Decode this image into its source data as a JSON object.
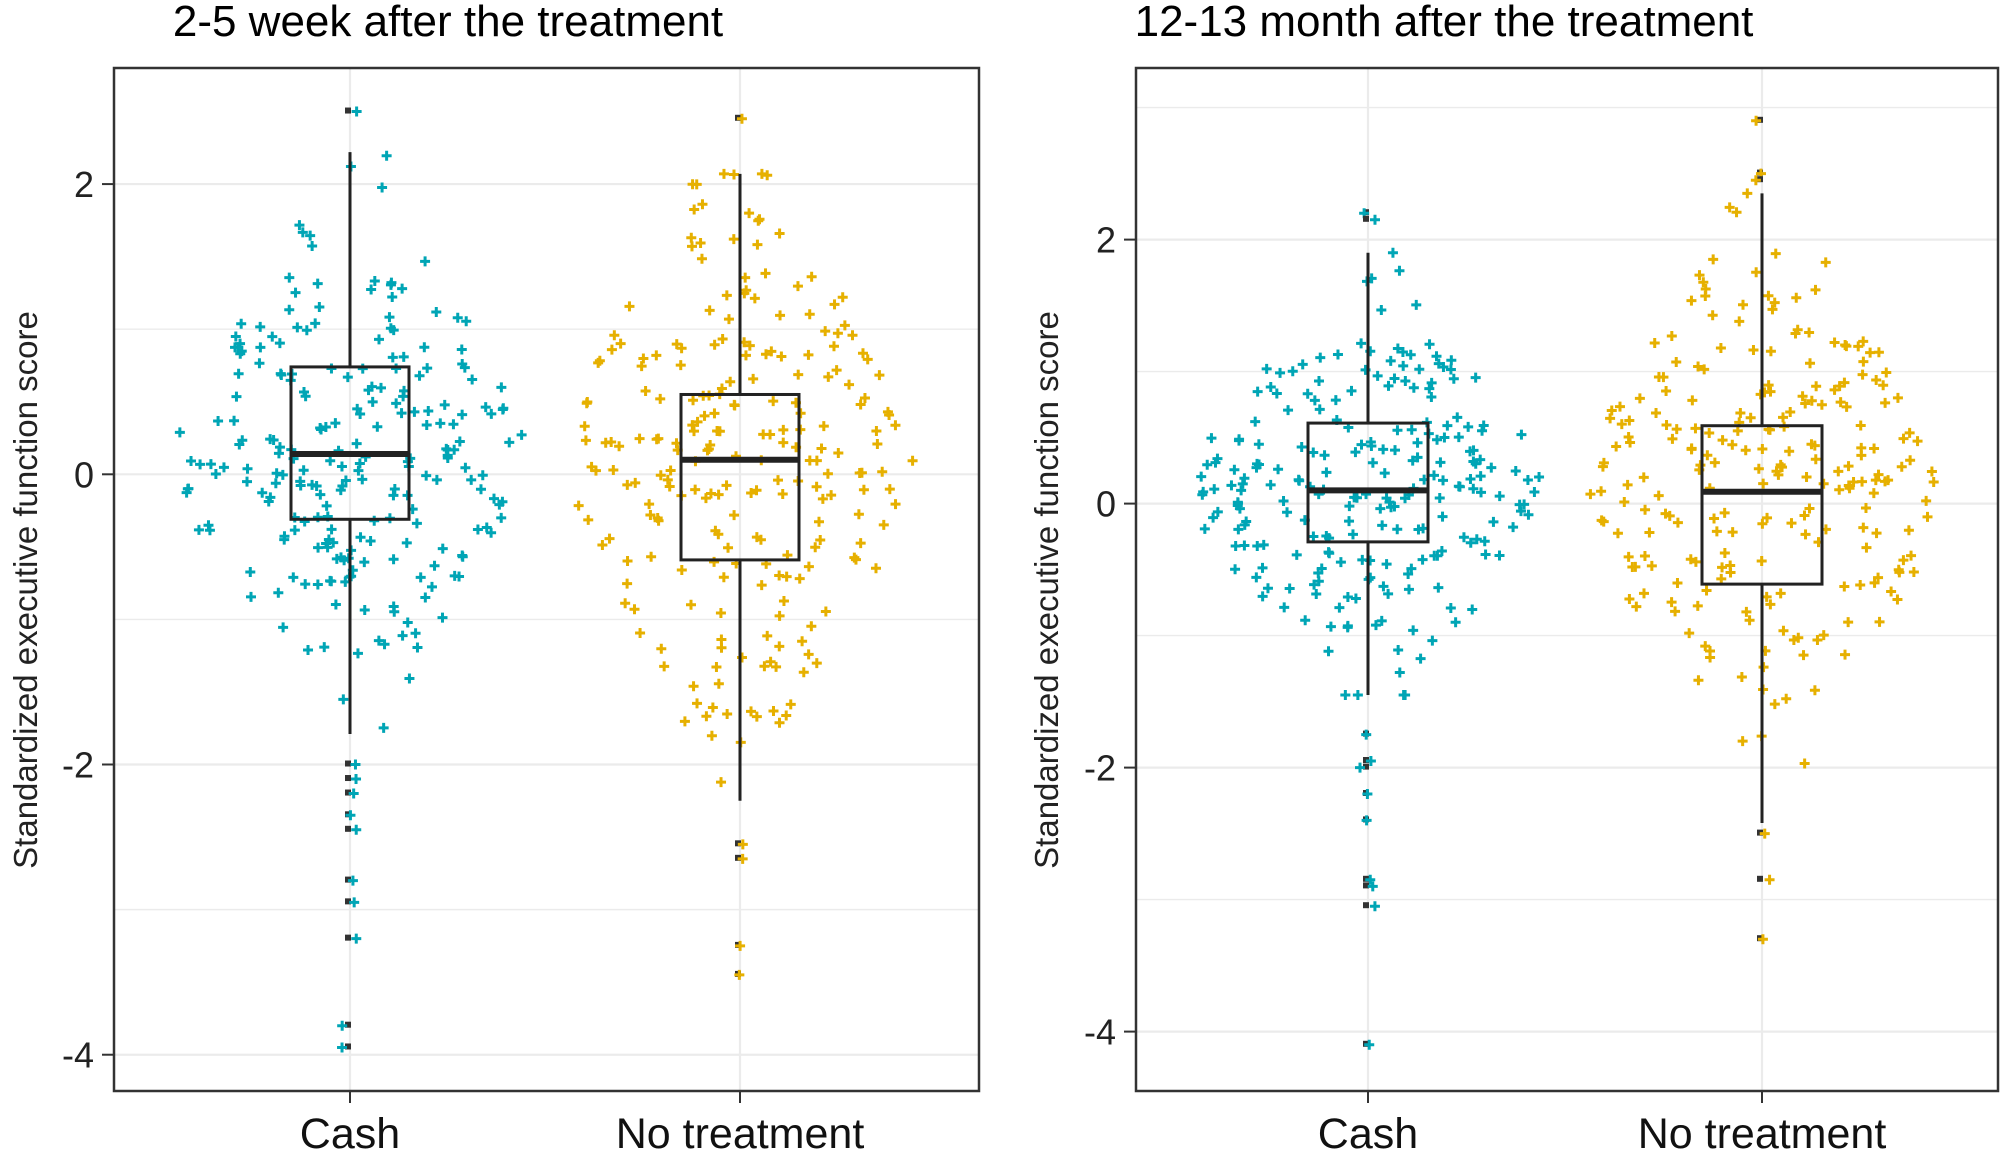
{
  "chart_data": [
    {
      "type": "box",
      "title": "2-5 week after the treatment",
      "xlabel": "",
      "ylabel": "Standardized executive function score",
      "categories": [
        "Cash",
        "No treatment"
      ],
      "ylim": [
        -4.25,
        2.8
      ],
      "yticks": [
        2,
        0,
        -2,
        -4
      ],
      "grid": true,
      "series": [
        {
          "name": "Cash",
          "color": "#00A5B5",
          "q1": -0.31,
          "median": 0.14,
          "q3": 0.74,
          "whisker_low": -1.79,
          "whisker_high": 2.22,
          "outliers": [
            2.5,
            -2.0,
            -2.1,
            -2.2,
            -2.35,
            -2.45,
            -2.8,
            -2.95,
            -3.2,
            -3.8,
            -3.95
          ]
        },
        {
          "name": "No treatment",
          "color": "#E6B000",
          "q1": -0.59,
          "median": 0.1,
          "q3": 0.55,
          "whisker_low": -2.25,
          "whisker_high": 2.07,
          "outliers": [
            2.45,
            -2.55,
            -2.65,
            -3.25,
            -3.45
          ]
        }
      ]
    },
    {
      "type": "box",
      "title": "12-13 month after the treatment",
      "xlabel": "",
      "ylabel": "Standardized executive function score",
      "categories": [
        "Cash",
        "No treatment"
      ],
      "ylim": [
        -4.45,
        3.3
      ],
      "yticks": [
        2,
        0,
        -2,
        -4
      ],
      "grid": true,
      "series": [
        {
          "name": "Cash",
          "color": "#00A5B5",
          "q1": -0.29,
          "median": 0.1,
          "q3": 0.61,
          "whisker_low": -1.45,
          "whisker_high": 1.9,
          "outliers": [
            2.2,
            2.15,
            -1.75,
            -1.95,
            -2.0,
            -2.2,
            -2.4,
            -2.85,
            -2.9,
            -3.05,
            -4.1
          ]
        },
        {
          "name": "No treatment",
          "color": "#E6B000",
          "q1": -0.61,
          "median": 0.09,
          "q3": 0.59,
          "whisker_low": -2.42,
          "whisker_high": 2.35,
          "outliers": [
            2.9,
            2.5,
            2.45,
            -2.5,
            -2.85,
            -3.3
          ]
        }
      ]
    }
  ]
}
